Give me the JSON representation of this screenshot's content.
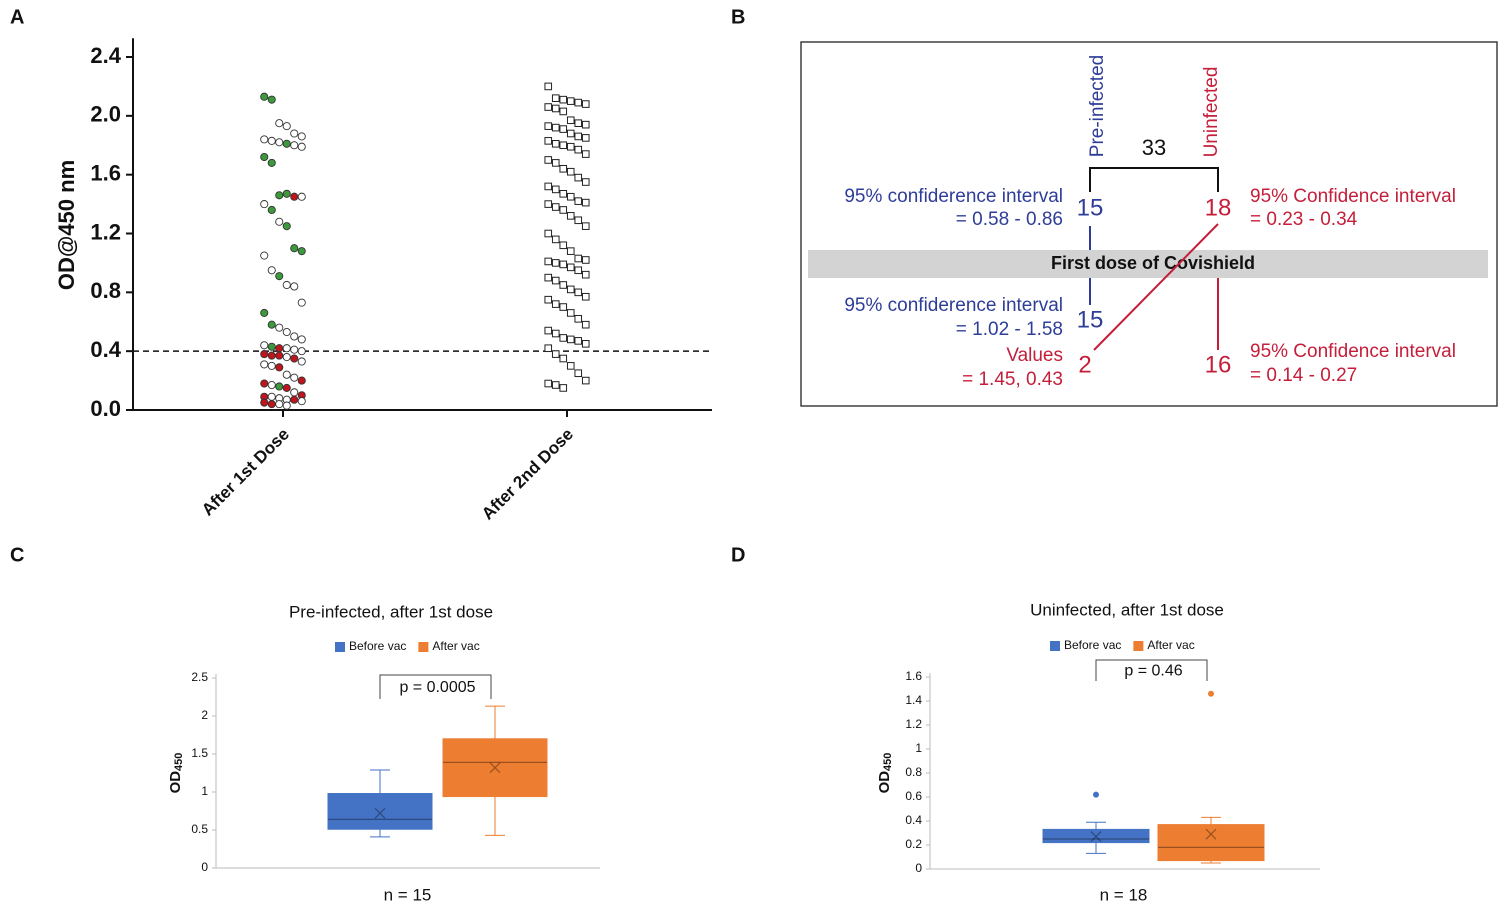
{
  "panel_labels": [
    "A",
    "B",
    "C",
    "D"
  ],
  "chart_data": [
    {
      "type": "strip",
      "ylabel": "OD@450 nm",
      "categories": [
        "After 1st Dose",
        "After 2nd Dose"
      ],
      "markers": [
        "circle",
        "square"
      ],
      "values": [
        [
          2.13,
          2.11,
          1.95,
          1.93,
          1.88,
          1.86,
          1.84,
          1.83,
          1.82,
          1.81,
          1.8,
          1.79,
          1.72,
          1.68,
          1.46,
          1.47,
          1.45,
          1.45,
          1.4,
          1.36,
          1.28,
          1.25,
          1.1,
          1.08,
          1.05,
          0.95,
          0.91,
          0.85,
          0.84,
          0.73,
          0.66,
          0.58,
          0.56,
          0.53,
          0.5,
          0.48,
          0.44,
          0.43,
          0.42,
          0.42,
          0.41,
          0.4,
          0.38,
          0.37,
          0.37,
          0.36,
          0.35,
          0.33,
          0.31,
          0.3,
          0.29,
          0.24,
          0.22,
          0.2,
          0.18,
          0.17,
          0.16,
          0.15,
          0.12,
          0.1,
          0.09,
          0.09,
          0.08,
          0.07,
          0.07,
          0.06,
          0.05,
          0.04,
          0.04,
          0.03
        ],
        [
          2.2,
          2.12,
          2.11,
          2.1,
          2.09,
          2.08,
          2.06,
          2.05,
          2.03,
          1.97,
          1.95,
          1.94,
          1.93,
          1.92,
          1.91,
          1.88,
          1.86,
          1.85,
          1.83,
          1.81,
          1.8,
          1.79,
          1.77,
          1.74,
          1.7,
          1.68,
          1.64,
          1.62,
          1.58,
          1.55,
          1.52,
          1.5,
          1.47,
          1.45,
          1.42,
          1.41,
          1.4,
          1.38,
          1.36,
          1.32,
          1.29,
          1.25,
          1.2,
          1.16,
          1.12,
          1.08,
          1.03,
          1.02,
          1.01,
          1.0,
          0.99,
          0.97,
          0.95,
          0.92,
          0.9,
          0.88,
          0.85,
          0.82,
          0.8,
          0.77,
          0.75,
          0.72,
          0.7,
          0.66,
          0.62,
          0.58,
          0.54,
          0.52,
          0.49,
          0.48,
          0.47,
          0.45,
          0.42,
          0.38,
          0.35,
          0.3,
          0.25,
          0.2,
          0.18,
          0.17,
          0.15
        ]
      ],
      "point_colors": [
        [
          "#3c9a3c",
          "#3c9a3c",
          "white",
          "white",
          "white",
          "white",
          "white",
          "white",
          "white",
          "#3c9a3c",
          "white",
          "white",
          "#3c9a3c",
          "#3c9a3c",
          "#3c9a3c",
          "#3c9a3c",
          "#c0151d",
          "white",
          "white",
          "#3c9a3c",
          "white",
          "#3c9a3c",
          "#3c9a3c",
          "#3c9a3c",
          "white",
          "white",
          "#3c9a3c",
          "white",
          "white",
          "white",
          "#3c9a3c",
          "#3c9a3c",
          "white",
          "white",
          "white",
          "white",
          "white",
          "#3c9a3c",
          "#c0151d",
          "white",
          "white",
          "white",
          "#c0151d",
          "#c0151d",
          "#c0151d",
          "white",
          "#c0151d",
          "white",
          "white",
          "white",
          "#c0151d",
          "white",
          "white",
          "#c0151d",
          "#c0151d",
          "white",
          "#3c9a3c",
          "#c0151d",
          "white",
          "#c0151d",
          "#c0151d",
          "white",
          "white",
          "white",
          "#c0151d",
          "white",
          "#c0151d",
          "#c0151d",
          "white",
          "white"
        ],
        "white"
      ],
      "ylim": [
        0,
        2.5
      ],
      "yticks": [
        {
          "value": 0,
          "label": "0.0"
        },
        0.4,
        0.8,
        1.2,
        1.6,
        {
          "value": 2,
          "label": "2.0"
        },
        2.4
      ],
      "reference_line": 0.4
    },
    {
      "type": "box",
      "title": "Pre-infected, after 1st dose",
      "ylabel": "OD",
      "ylabel_subscript": "450",
      "xlabel": "n = 15",
      "annotation": "p = 0.0005",
      "ylim": [
        0,
        2.5
      ],
      "yticks": [
        0,
        0.5,
        1,
        1.5,
        2,
        2.5
      ],
      "series": [
        {
          "name": "Before vac",
          "color": "#4472c4",
          "min": 0.41,
          "q1": 0.51,
          "median": 0.64,
          "q3": 0.98,
          "max": 1.29,
          "mean": 0.72,
          "outliers": []
        },
        {
          "name": "After vac",
          "color": "#ed7d31",
          "min": 0.43,
          "q1": 0.94,
          "median": 1.39,
          "q3": 1.7,
          "max": 2.13,
          "mean": 1.32,
          "outliers": []
        }
      ]
    },
    {
      "type": "box",
      "title": "Uninfected, after 1st dose",
      "ylabel": "OD",
      "ylabel_subscript": "450",
      "xlabel": "n = 18",
      "annotation": "p = 0.46",
      "ylim": [
        0,
        1.6
      ],
      "yticks": [
        0,
        0.2,
        0.4,
        0.6,
        0.8,
        1,
        1.2,
        1.4,
        1.6
      ],
      "series": [
        {
          "name": "Before vac",
          "color": "#4472c4",
          "min": 0.13,
          "q1": 0.22,
          "median": 0.25,
          "q3": 0.33,
          "max": 0.39,
          "mean": 0.27,
          "outliers": [
            0.62
          ]
        },
        {
          "name": "After vac",
          "color": "#ed7d31",
          "min": 0.05,
          "q1": 0.07,
          "median": 0.18,
          "q3": 0.37,
          "max": 0.43,
          "mean": 0.29,
          "outliers": [
            1.46
          ]
        }
      ]
    }
  ],
  "diagram": {
    "total": "33",
    "band": "First dose of Covishield",
    "pre_infected": {
      "label": "Pre-infected",
      "count": "15",
      "note": [
        "95% confiderence interval",
        "= 0.58 - 0.86"
      ]
    },
    "uninfected": {
      "label": "Uninfected",
      "count": "18",
      "note": [
        "95% Confidence interval",
        "= 0.23 - 0.34"
      ]
    },
    "after": [
      {
        "count": "15",
        "note": [
          "95% confiderence interval",
          "= 1.02 - 1.58"
        ]
      },
      {
        "count": "2",
        "note": [
          "Values",
          "= 1.45, 0.43"
        ]
      },
      {
        "count": "16",
        "note": [
          "95% Confidence interval",
          "= 0.14 - 0.27"
        ]
      }
    ]
  }
}
